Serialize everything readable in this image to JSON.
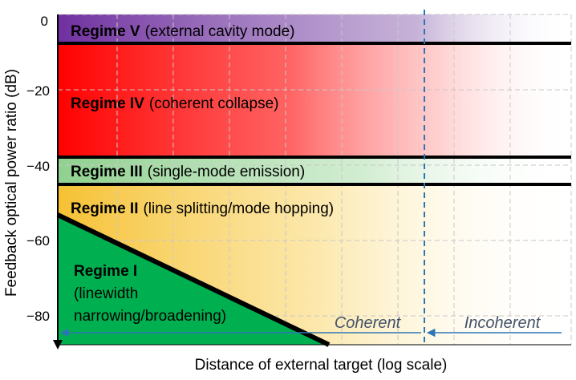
{
  "chart_data": {
    "type": "area",
    "title": "",
    "xlabel": "Distance of external target (log scale)",
    "ylabel": "Feedback optical power ratio (dB)",
    "x_scale": "log",
    "ylim": [
      -87,
      0
    ],
    "yticks": [
      "0",
      "−20",
      "−40",
      "−60",
      "−80"
    ],
    "ytick_values": [
      0,
      -20,
      -40,
      -60,
      -80
    ],
    "grid": true,
    "regime_boundaries_db": [
      -5,
      -38,
      -46
    ],
    "regimes": [
      {
        "name": "Regime V",
        "desc": "(external cavity mode)",
        "color": "#7030a0",
        "db_top": 0,
        "db_bottom": -5
      },
      {
        "name": "Regime IV",
        "desc": "(coherent collapse)",
        "color": "#ff0000",
        "db_top": -5,
        "db_bottom": -38
      },
      {
        "name": "Regime III",
        "desc": "(single-mode emission)",
        "color": "#9fd39f",
        "db_top": -38,
        "db_bottom": -46
      },
      {
        "name": "Regime II",
        "desc": "(line splitting/mode hopping)",
        "color": "#f6c133",
        "db_top": -46,
        "db_bottom": -87
      },
      {
        "name": "Regime I",
        "desc_lines": [
          "(linewidth",
          "narrowing/broadening)"
        ],
        "color": "#00b050"
      }
    ],
    "regime1_boundary_db": {
      "start": -54,
      "end": -87
    },
    "coherence": {
      "coherent": "Coherent",
      "incoherent": "Incoherent"
    }
  }
}
